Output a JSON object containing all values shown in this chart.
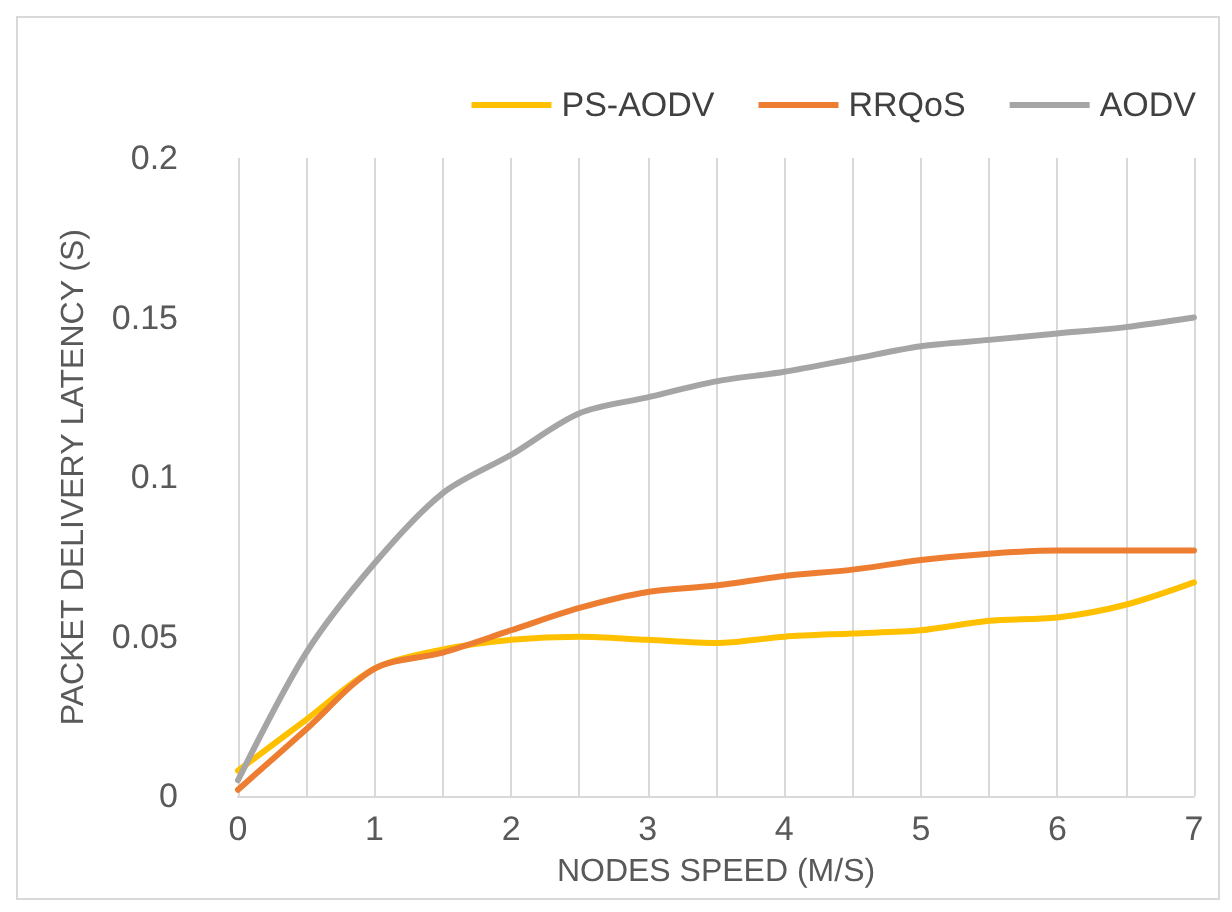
{
  "chart_data": {
    "type": "line",
    "xlabel": "NODES SPEED (M/S)",
    "ylabel": "PACKET DELIVERY LATENCY (S)",
    "x": [
      0,
      0.5,
      1,
      1.5,
      2,
      2.5,
      3,
      3.5,
      4,
      4.5,
      5,
      5.5,
      6,
      6.5,
      7
    ],
    "series": [
      {
        "name": "PS-AODV",
        "color": "#ffc000",
        "values": [
          0.008,
          0.024,
          0.04,
          0.046,
          0.049,
          0.05,
          0.049,
          0.048,
          0.05,
          0.051,
          0.052,
          0.055,
          0.056,
          0.06,
          0.067
        ]
      },
      {
        "name": "RRQoS",
        "color": "#ed7d31",
        "values": [
          0.002,
          0.021,
          0.04,
          0.045,
          0.052,
          0.059,
          0.064,
          0.066,
          0.069,
          0.071,
          0.074,
          0.076,
          0.077,
          0.077,
          0.077
        ]
      },
      {
        "name": "AODV",
        "color": "#a5a5a5",
        "values": [
          0.005,
          0.045,
          0.073,
          0.095,
          0.107,
          0.12,
          0.125,
          0.13,
          0.133,
          0.137,
          0.141,
          0.143,
          0.145,
          0.147,
          0.15
        ]
      }
    ],
    "xlim": [
      0,
      7
    ],
    "xticks": [
      0,
      {
        "value": 0.5,
        "label": null
      },
      1,
      {
        "value": 1.5,
        "label": null
      },
      2,
      {
        "value": 2.5,
        "label": null
      },
      3,
      {
        "value": 3.5,
        "label": null
      },
      4,
      {
        "value": 4.5,
        "label": null
      },
      5,
      {
        "value": 5.5,
        "label": null
      },
      6,
      {
        "value": 6.5,
        "label": null
      },
      7
    ],
    "ylim": [
      0,
      0.2
    ],
    "yticks": [
      0,
      0.05,
      0.1,
      0.15,
      0.2
    ],
    "grid": "x",
    "legend": "top right",
    "marker": "none",
    "line_style": "solid"
  }
}
